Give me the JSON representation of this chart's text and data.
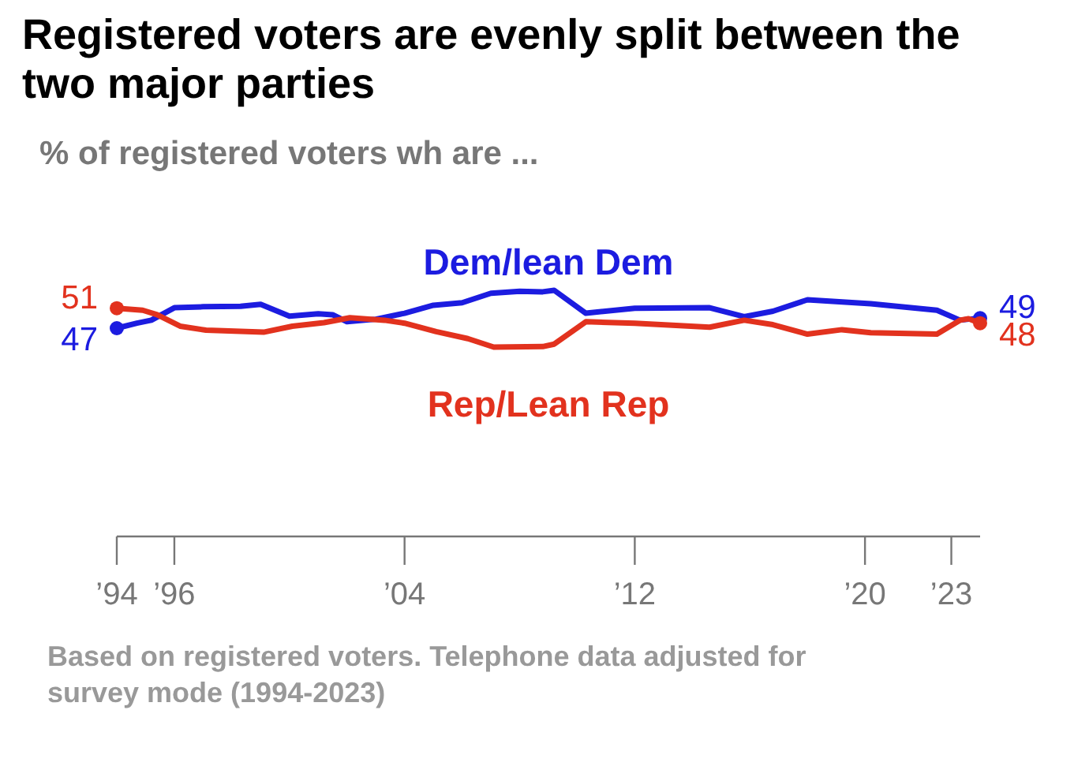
{
  "chart_data": {
    "type": "line",
    "title": "Registered voters are evenly split between the two major parties",
    "subtitle": "% of registered voters wh are ...",
    "annotations": [
      "Based on registered voters.  Telephone data adjusted for survey mode (1994-2023)"
    ],
    "xlim": [
      1994,
      2024
    ],
    "xticks": [
      {
        "value": 1994,
        "label": "’94"
      },
      {
        "value": 1996,
        "label": "’96"
      },
      {
        "value": 2004,
        "label": "’04"
      },
      {
        "value": 2012,
        "label": "’12"
      },
      {
        "value": 2020,
        "label": "’20"
      },
      {
        "value": 2023,
        "label": "’23"
      }
    ],
    "tick_labels": "x",
    "series": [
      {
        "name": "Dem/lean Dem",
        "color": "#1c1ce0",
        "x": [
          1994,
          1994.7,
          1995.2,
          1996,
          1997,
          1998.3,
          1999,
          2000,
          2001,
          2001.5,
          2002,
          2003,
          2004,
          2005,
          2006,
          2007,
          2008,
          2008.8,
          2009.2,
          2010.3,
          2012,
          2014.6,
          2015.8,
          2016.8,
          2018,
          2020.2,
          2022.5,
          2023.3,
          2023.6,
          2024
        ],
        "values": [
          47,
          48,
          48.6,
          51.1,
          51.3,
          51.4,
          51.8,
          49.4,
          49.9,
          49.7,
          48.3,
          48.8,
          50,
          51.6,
          52.1,
          54,
          54.4,
          54.3,
          54.6,
          50,
          51,
          51.1,
          49.3,
          50.4,
          52.7,
          51.9,
          50.6,
          48.6,
          48.8,
          49
        ],
        "value_labels": [
          "47",
          null,
          null,
          null,
          null,
          null,
          null,
          null,
          null,
          null,
          null,
          null,
          null,
          null,
          null,
          null,
          null,
          null,
          null,
          null,
          null,
          null,
          null,
          null,
          null,
          null,
          null,
          null,
          null,
          "49"
        ]
      },
      {
        "name": "Rep/Lean Rep",
        "color": "#e2321e",
        "x": [
          1994,
          1994.9,
          1995.4,
          1996.2,
          1997.1,
          1999.1,
          2000.1,
          2001.2,
          2002.1,
          2003.3,
          2004,
          2005.1,
          2006.2,
          2007.1,
          2008.8,
          2009.2,
          2010.3,
          2012,
          2014.6,
          2015.8,
          2016.8,
          2018,
          2019.2,
          2020.2,
          2022.5,
          2023.3,
          2023.6,
          2024
        ],
        "values": [
          51,
          50.6,
          49.7,
          47.4,
          46.6,
          46.2,
          47.4,
          48.1,
          49.1,
          48.6,
          48,
          46.3,
          44.9,
          43.2,
          43.3,
          43.8,
          48.3,
          48,
          47.2,
          48.6,
          47.7,
          45.8,
          46.7,
          46.1,
          45.8,
          48.6,
          48.9,
          48
        ],
        "value_labels": [
          "51",
          null,
          null,
          null,
          null,
          null,
          null,
          null,
          null,
          null,
          null,
          null,
          null,
          null,
          null,
          null,
          null,
          null,
          null,
          null,
          null,
          null,
          null,
          null,
          null,
          null,
          null,
          "48"
        ]
      }
    ]
  }
}
